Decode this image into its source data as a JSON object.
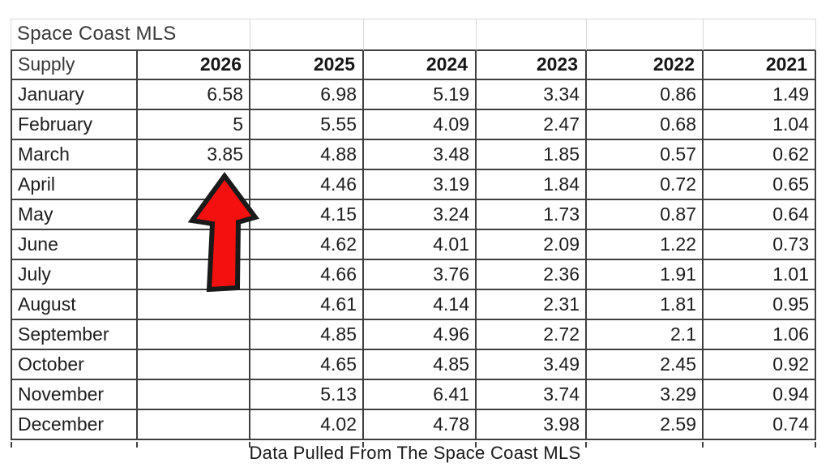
{
  "title": "Space Coast MLS",
  "footer": "Data Pulled From The Space Coast MLS",
  "colors": {
    "arrow_fill": "#f51010",
    "arrow_outline": "#1a1a1a",
    "border_dark": "#3f3f3f",
    "gridline_light": "#d7d7d7",
    "text": "#1d1d1d"
  },
  "annotation": {
    "icon": "red-up-arrow-icon",
    "points_at": "March 2026 value"
  },
  "chart_data": {
    "type": "table",
    "title": "Space Coast MLS",
    "corner_label": "Supply",
    "columns": [
      "2026",
      "2025",
      "2024",
      "2023",
      "2022",
      "2021"
    ],
    "rows": [
      {
        "month": "January",
        "values": [
          "6.58",
          "6.98",
          "5.19",
          "3.34",
          "0.86",
          "1.49"
        ]
      },
      {
        "month": "February",
        "values": [
          "5",
          "5.55",
          "4.09",
          "2.47",
          "0.68",
          "1.04"
        ]
      },
      {
        "month": "March",
        "values": [
          "3.85",
          "4.88",
          "3.48",
          "1.85",
          "0.57",
          "0.62"
        ]
      },
      {
        "month": "April",
        "values": [
          "",
          "4.46",
          "3.19",
          "1.84",
          "0.72",
          "0.65"
        ]
      },
      {
        "month": "May",
        "values": [
          "",
          "4.15",
          "3.24",
          "1.73",
          "0.87",
          "0.64"
        ]
      },
      {
        "month": "June",
        "values": [
          "",
          "4.62",
          "4.01",
          "2.09",
          "1.22",
          "0.73"
        ]
      },
      {
        "month": "July",
        "values": [
          "",
          "4.66",
          "3.76",
          "2.36",
          "1.91",
          "1.01"
        ]
      },
      {
        "month": "August",
        "values": [
          "",
          "4.61",
          "4.14",
          "2.31",
          "1.81",
          "0.95"
        ]
      },
      {
        "month": "September",
        "values": [
          "",
          "4.85",
          "4.96",
          "2.72",
          "2.1",
          "1.06"
        ]
      },
      {
        "month": "October",
        "values": [
          "",
          "4.65",
          "4.85",
          "3.49",
          "2.45",
          "0.92"
        ]
      },
      {
        "month": "November",
        "values": [
          "",
          "5.13",
          "6.41",
          "3.74",
          "3.29",
          "0.94"
        ]
      },
      {
        "month": "December",
        "values": [
          "",
          "4.02",
          "4.78",
          "3.98",
          "2.59",
          "0.74"
        ]
      }
    ]
  }
}
